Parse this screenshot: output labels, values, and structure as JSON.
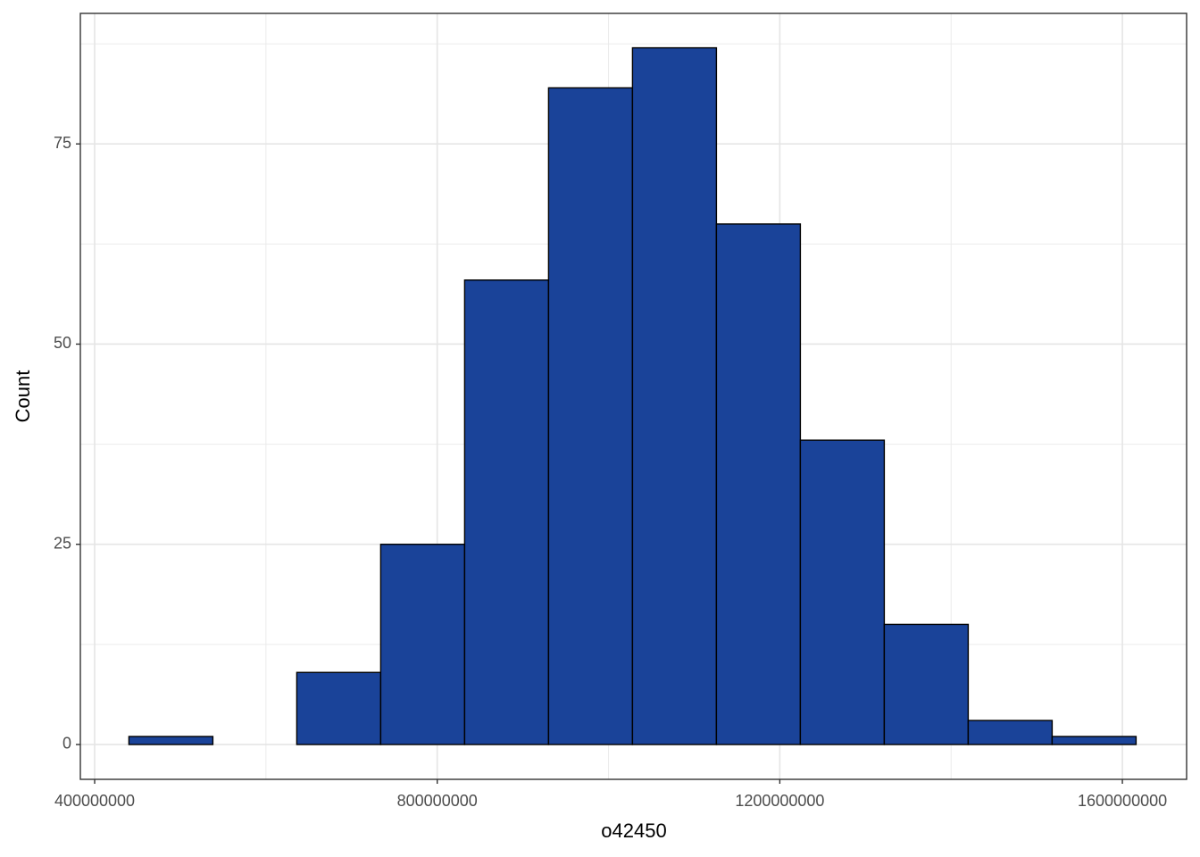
{
  "chart_data": {
    "type": "histogram",
    "x_label": "o42450",
    "y_label": "Count",
    "bins": [
      440000000,
      538000000,
      636000000,
      734000000,
      832000000,
      930000000,
      1028000000,
      1126000000,
      1224000000,
      1322000000,
      1420000000,
      1518000000,
      1616000000
    ],
    "values": [
      1,
      0,
      9,
      25,
      58,
      82,
      87,
      65,
      38,
      15,
      3,
      1
    ],
    "color": "#1a4399",
    "edge_color": "#000000",
    "xlim": [
      383300000,
      1675000000
    ],
    "xticks": [
      400000000,
      800000000,
      1200000000,
      1600000000
    ],
    "ylim": [
      -4.35,
      91.3
    ],
    "yticks": [
      0,
      25,
      50,
      75
    ],
    "grid": true,
    "minor_grid": true
  }
}
